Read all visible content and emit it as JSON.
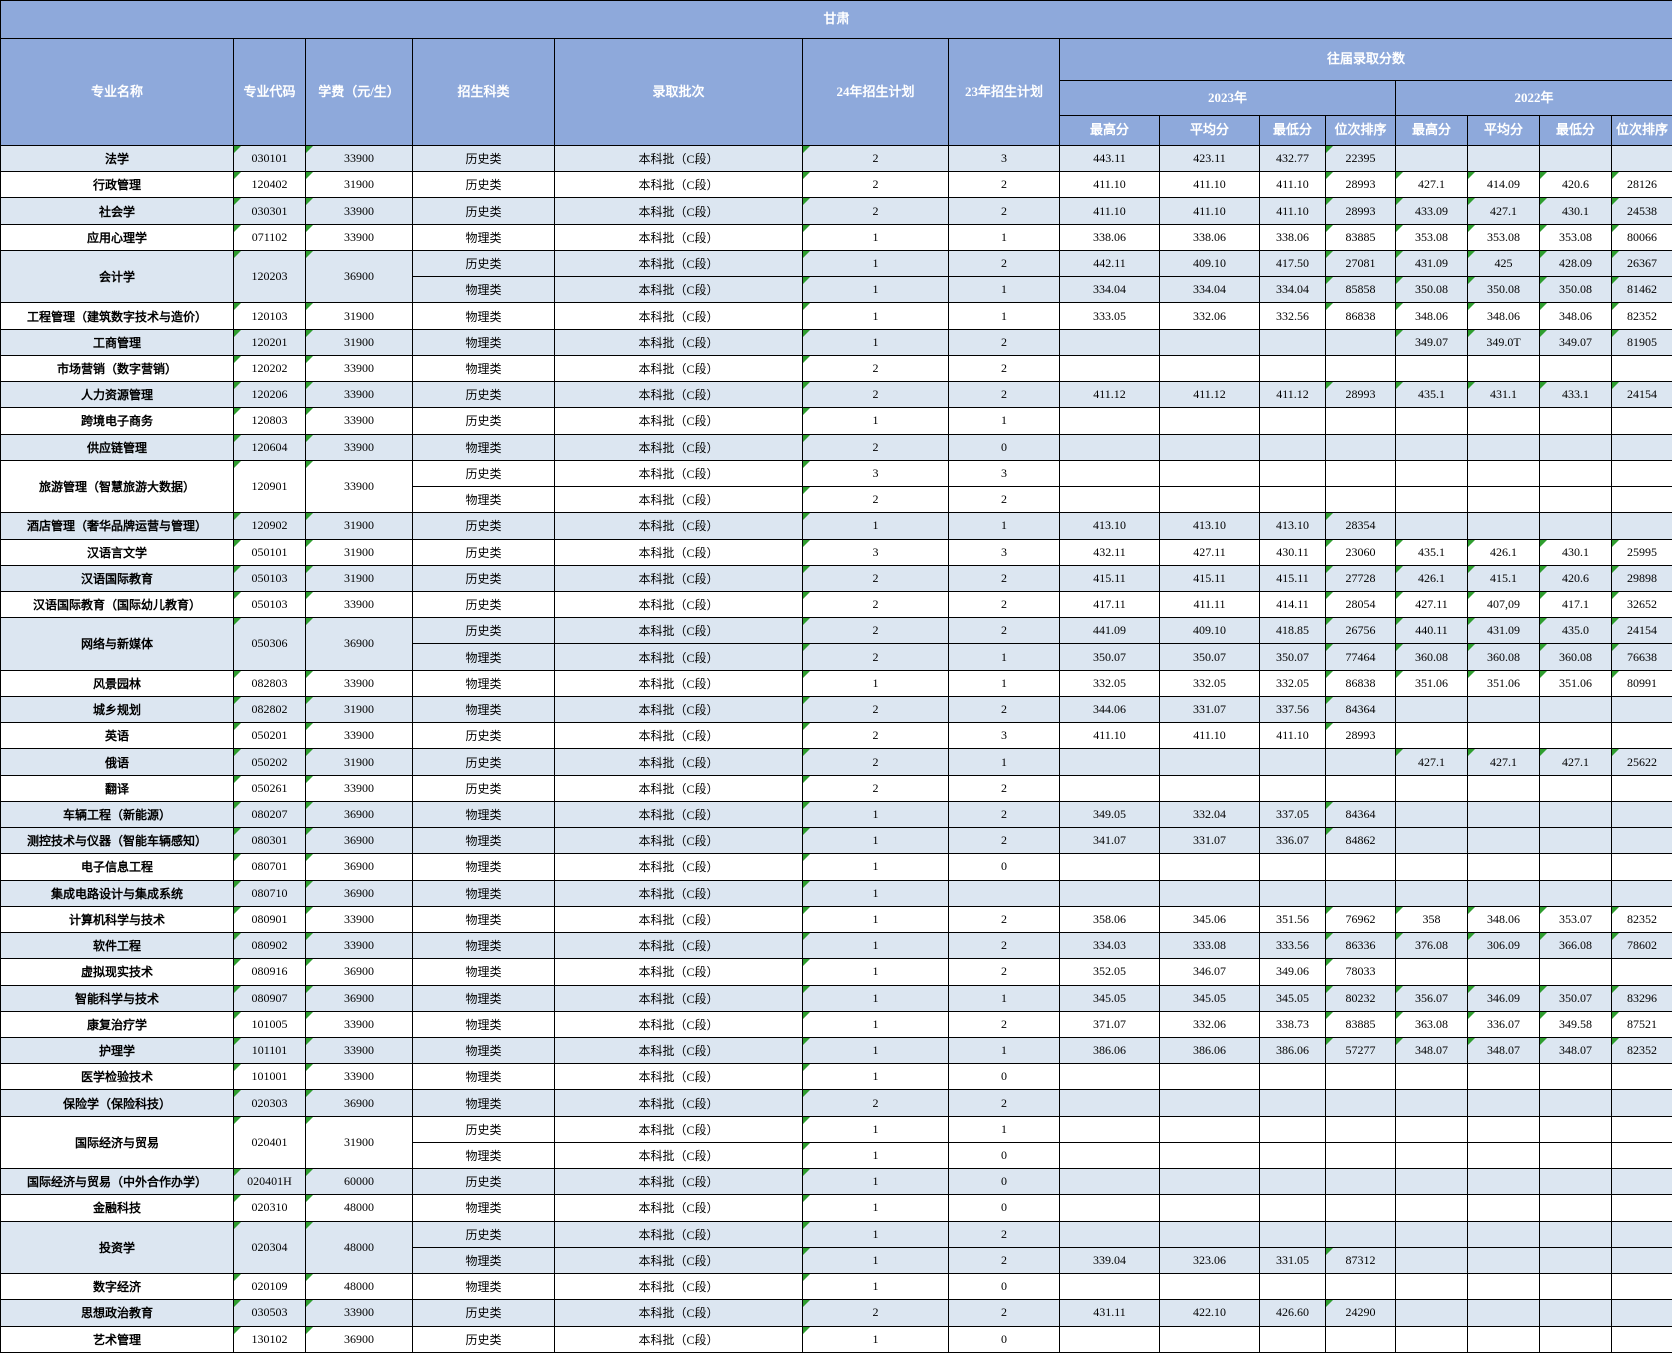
{
  "title": "甘肃",
  "colors": {
    "header_blue": "#8ea9db",
    "row_tint": "#dce6f1",
    "border": "#000000",
    "marker_green": "#2f9e2f"
  },
  "header": {
    "major_name": "专业名称",
    "major_code": "专业代码",
    "tuition": "学费（元/生）",
    "category": "招生科类",
    "batch": "录取批次",
    "plan24": "24年招生计划",
    "plan23": "23年招生计划",
    "past_scores": "往届录取分数",
    "year2023": "2023年",
    "year2022": "2022年",
    "max": "最高分",
    "avg": "平均分",
    "min": "最低分",
    "rank": "位次排序"
  },
  "rows": [
    {
      "name": "法学",
      "code": "030101",
      "tuition": "33900",
      "rowspan": 1,
      "category": "历史类",
      "batch": "本科批（C段）",
      "p24": "2",
      "p23": "3",
      "s": [
        "443.11",
        "423.11",
        "432.77",
        "22395",
        "",
        "",
        "",
        ""
      ],
      "tint": true
    },
    {
      "name": "行政管理",
      "code": "120402",
      "tuition": "31900",
      "rowspan": 1,
      "category": "历史类",
      "batch": "本科批（C段）",
      "p24": "2",
      "p23": "2",
      "s": [
        "411.10",
        "411.10",
        "411.10",
        "28993",
        "427.1",
        "414.09",
        "420.6",
        "28126"
      ],
      "tint": false
    },
    {
      "name": "社会学",
      "code": "030301",
      "tuition": "33900",
      "rowspan": 1,
      "category": "历史类",
      "batch": "本科批（C段）",
      "p24": "2",
      "p23": "2",
      "s": [
        "411.10",
        "411.10",
        "411.10",
        "28993",
        "433.09",
        "427.1",
        "430.1",
        "24538"
      ],
      "tint": true
    },
    {
      "name": "应用心理学",
      "code": "071102",
      "tuition": "33900",
      "rowspan": 1,
      "category": "物理类",
      "batch": "本科批（C段）",
      "p24": "1",
      "p23": "1",
      "s": [
        "338.06",
        "338.06",
        "338.06",
        "83885",
        "353.08",
        "353.08",
        "353.08",
        "80066"
      ],
      "tint": false
    },
    {
      "name": "会计学",
      "code": "120203",
      "tuition": "36900",
      "rowspan": 2,
      "category": "历史类",
      "batch": "本科批（C段）",
      "p24": "1",
      "p23": "2",
      "s": [
        "442.11",
        "409.10",
        "417.50",
        "27081",
        "431.09",
        "425",
        "428.09",
        "26367"
      ],
      "tint": true
    },
    {
      "merged": true,
      "category": "物理类",
      "batch": "本科批（C段）",
      "p24": "1",
      "p23": "1",
      "s": [
        "334.04",
        "334.04",
        "334.04",
        "85858",
        "350.08",
        "350.08",
        "350.08",
        "81462"
      ],
      "tint": true
    },
    {
      "name": "工程管理（建筑数字技术与造价）",
      "code": "120103",
      "tuition": "31900",
      "rowspan": 1,
      "category": "物理类",
      "batch": "本科批（C段）",
      "p24": "1",
      "p23": "1",
      "s": [
        "333.05",
        "332.06",
        "332.56",
        "86838",
        "348.06",
        "348.06",
        "348.06",
        "82352"
      ],
      "tint": false
    },
    {
      "name": "工商管理",
      "code": "120201",
      "tuition": "31900",
      "rowspan": 1,
      "category": "物理类",
      "batch": "本科批（C段）",
      "p24": "1",
      "p23": "2",
      "s": [
        "",
        "",
        "",
        "",
        "349.07",
        "349.0T",
        "349.07",
        "81905"
      ],
      "tint": true
    },
    {
      "name": "市场营销（数字营销）",
      "code": "120202",
      "tuition": "33900",
      "rowspan": 1,
      "category": "物理类",
      "batch": "本科批（C段）",
      "p24": "2",
      "p23": "2",
      "s": [
        "",
        "",
        "",
        "",
        "",
        "",
        "",
        ""
      ],
      "tint": false
    },
    {
      "name": "人力资源管理",
      "code": "120206",
      "tuition": "33900",
      "rowspan": 1,
      "category": "历史类",
      "batch": "本科批（C段）",
      "p24": "2",
      "p23": "2",
      "s": [
        "411.12",
        "411.12",
        "411.12",
        "28993",
        "435.1",
        "431.1",
        "433.1",
        "24154"
      ],
      "tint": true
    },
    {
      "name": "跨境电子商务",
      "code": "120803",
      "tuition": "33900",
      "rowspan": 1,
      "category": "历史类",
      "batch": "本科批（C段）",
      "p24": "1",
      "p23": "1",
      "s": [
        "",
        "",
        "",
        "",
        "",
        "",
        "",
        ""
      ],
      "tint": false
    },
    {
      "name": "供应链管理",
      "code": "120604",
      "tuition": "33900",
      "rowspan": 1,
      "category": "物理类",
      "batch": "本科批（C段）",
      "p24": "2",
      "p23": "0",
      "s": [
        "",
        "",
        "",
        "",
        "",
        "",
        "",
        ""
      ],
      "tint": true
    },
    {
      "name": "旅游管理（智慧旅游大数据）",
      "code": "120901",
      "tuition": "33900",
      "rowspan": 2,
      "category": "历史类",
      "batch": "本科批（C段）",
      "p24": "3",
      "p23": "3",
      "s": [
        "",
        "",
        "",
        "",
        "",
        "",
        "",
        ""
      ],
      "tint": false
    },
    {
      "merged": true,
      "category": "物理类",
      "batch": "本科批（C段）",
      "p24": "2",
      "p23": "2",
      "s": [
        "",
        "",
        "",
        "",
        "",
        "",
        "",
        ""
      ],
      "tint": false
    },
    {
      "name": "酒店管理（奢华品牌运营与管理）",
      "code": "120902",
      "tuition": "31900",
      "rowspan": 1,
      "category": "历史类",
      "batch": "本科批（C段）",
      "p24": "1",
      "p23": "1",
      "s": [
        "413.10",
        "413.10",
        "413.10",
        "28354",
        "",
        "",
        "",
        ""
      ],
      "tint": true
    },
    {
      "name": "汉语言文学",
      "code": "050101",
      "tuition": "31900",
      "rowspan": 1,
      "category": "历史类",
      "batch": "本科批（C段）",
      "p24": "3",
      "p23": "3",
      "s": [
        "432.11",
        "427.11",
        "430.11",
        "23060",
        "435.1",
        "426.1",
        "430.1",
        "25995"
      ],
      "tint": false
    },
    {
      "name": "汉语国际教育",
      "code": "050103",
      "tuition": "31900",
      "rowspan": 1,
      "category": "历史类",
      "batch": "本科批（C段）",
      "p24": "2",
      "p23": "2",
      "s": [
        "415.11",
        "415.11",
        "415.11",
        "27728",
        "426.1",
        "415.1",
        "420.6",
        "29898"
      ],
      "tint": true
    },
    {
      "name": "汉语国际教育（国际幼儿教育）",
      "code": "050103",
      "tuition": "33900",
      "rowspan": 1,
      "category": "历史类",
      "batch": "本科批（C段）",
      "p24": "2",
      "p23": "2",
      "s": [
        "417.11",
        "411.11",
        "414.11",
        "28054",
        "427.11",
        "407,09",
        "417.1",
        "32652"
      ],
      "tint": false
    },
    {
      "name": "网络与新媒体",
      "code": "050306",
      "tuition": "36900",
      "rowspan": 2,
      "category": "历史类",
      "batch": "本科批（C段）",
      "p24": "2",
      "p23": "2",
      "s": [
        "441.09",
        "409.10",
        "418.85",
        "26756",
        "440.11",
        "431.09",
        "435.0",
        "24154"
      ],
      "tint": true
    },
    {
      "merged": true,
      "category": "物理类",
      "batch": "本科批（C段）",
      "p24": "2",
      "p23": "1",
      "s": [
        "350.07",
        "350.07",
        "350.07",
        "77464",
        "360.08",
        "360.08",
        "360.08",
        "76638"
      ],
      "tint": true
    },
    {
      "name": "风景园林",
      "code": "082803",
      "tuition": "33900",
      "rowspan": 1,
      "category": "物理类",
      "batch": "本科批（C段）",
      "p24": "1",
      "p23": "1",
      "s": [
        "332.05",
        "332.05",
        "332.05",
        "86838",
        "351.06",
        "351.06",
        "351.06",
        "80991"
      ],
      "tint": false
    },
    {
      "name": "城乡规划",
      "code": "082802",
      "tuition": "31900",
      "rowspan": 1,
      "category": "物理类",
      "batch": "本科批（C段）",
      "p24": "2",
      "p23": "2",
      "s": [
        "344.06",
        "331.07",
        "337.56",
        "84364",
        "",
        "",
        "",
        ""
      ],
      "tint": true
    },
    {
      "name": "英语",
      "code": "050201",
      "tuition": "33900",
      "rowspan": 1,
      "category": "历史类",
      "batch": "本科批（C段）",
      "p24": "2",
      "p23": "3",
      "s": [
        "411.10",
        "411.10",
        "411.10",
        "28993",
        "",
        "",
        "",
        ""
      ],
      "tint": false
    },
    {
      "name": "俄语",
      "code": "050202",
      "tuition": "31900",
      "rowspan": 1,
      "category": "历史类",
      "batch": "本科批（C段）",
      "p24": "2",
      "p23": "1",
      "s": [
        "",
        "",
        "",
        "",
        "427.1",
        "427.1",
        "427.1",
        "25622"
      ],
      "tint": true
    },
    {
      "name": "翻译",
      "code": "050261",
      "tuition": "33900",
      "rowspan": 1,
      "category": "历史类",
      "batch": "本科批（C段）",
      "p24": "2",
      "p23": "2",
      "s": [
        "",
        "",
        "",
        "",
        "",
        "",
        "",
        ""
      ],
      "tint": false
    },
    {
      "name": "车辆工程（新能源）",
      "code": "080207",
      "tuition": "36900",
      "rowspan": 1,
      "category": "物理类",
      "batch": "本科批（C段）",
      "p24": "1",
      "p23": "2",
      "s": [
        "349.05",
        "332.04",
        "337.05",
        "84364",
        "",
        "",
        "",
        ""
      ],
      "tint": true
    },
    {
      "name": "测控技术与仪器（智能车辆感知）",
      "code": "080301",
      "tuition": "36900",
      "rowspan": 1,
      "category": "物理类",
      "batch": "本科批（C段）",
      "p24": "1",
      "p23": "2",
      "s": [
        "341.07",
        "331.07",
        "336.07",
        "84862",
        "",
        "",
        "",
        ""
      ],
      "tint": true
    },
    {
      "name": "电子信息工程",
      "code": "080701",
      "tuition": "36900",
      "rowspan": 1,
      "category": "物理类",
      "batch": "本科批（C段）",
      "p24": "1",
      "p23": "0",
      "s": [
        "",
        "",
        "",
        "",
        "",
        "",
        "",
        ""
      ],
      "tint": false
    },
    {
      "name": "集成电路设计与集成系统",
      "code": "080710",
      "tuition": "36900",
      "rowspan": 1,
      "category": "物理类",
      "batch": "本科批（C段）",
      "p24": "1",
      "p23": "",
      "s": [
        "",
        "",
        "",
        "",
        "",
        "",
        "",
        ""
      ],
      "tint": true
    },
    {
      "name": "计算机科学与技术",
      "code": "080901",
      "tuition": "33900",
      "rowspan": 1,
      "category": "物理类",
      "batch": "本科批（C段）",
      "p24": "1",
      "p23": "2",
      "s": [
        "358.06",
        "345.06",
        "351.56",
        "76962",
        "358",
        "348.06",
        "353.07",
        "82352"
      ],
      "tint": false
    },
    {
      "name": "软件工程",
      "code": "080902",
      "tuition": "33900",
      "rowspan": 1,
      "category": "物理类",
      "batch": "本科批（C段）",
      "p24": "1",
      "p23": "2",
      "s": [
        "334.03",
        "333.08",
        "333.56",
        "86336",
        "376.08",
        "306.09",
        "366.08",
        "78602"
      ],
      "tint": true
    },
    {
      "name": "虚拟现实技术",
      "code": "080916",
      "tuition": "36900",
      "rowspan": 1,
      "category": "物理类",
      "batch": "本科批（C段）",
      "p24": "1",
      "p23": "2",
      "s": [
        "352.05",
        "346.07",
        "349.06",
        "78033",
        "",
        "",
        "",
        ""
      ],
      "tint": false
    },
    {
      "name": "智能科学与技术",
      "code": "080907",
      "tuition": "36900",
      "rowspan": 1,
      "category": "物理类",
      "batch": "本科批（C段）",
      "p24": "1",
      "p23": "1",
      "s": [
        "345.05",
        "345.05",
        "345.05",
        "80232",
        "356.07",
        "346.09",
        "350.07",
        "83296"
      ],
      "tint": true
    },
    {
      "name": "康复治疗学",
      "code": "101005",
      "tuition": "33900",
      "rowspan": 1,
      "category": "物理类",
      "batch": "本科批（C段）",
      "p24": "1",
      "p23": "2",
      "s": [
        "371.07",
        "332.06",
        "338.73",
        "83885",
        "363.08",
        "336.07",
        "349.58",
        "87521"
      ],
      "tint": false
    },
    {
      "name": "护理学",
      "code": "101101",
      "tuition": "33900",
      "rowspan": 1,
      "category": "物理类",
      "batch": "本科批（C段）",
      "p24": "1",
      "p23": "1",
      "s": [
        "386.06",
        "386.06",
        "386.06",
        "57277",
        "348.07",
        "348.07",
        "348.07",
        "82352"
      ],
      "tint": true
    },
    {
      "name": "医学检验技术",
      "code": "101001",
      "tuition": "33900",
      "rowspan": 1,
      "category": "物理类",
      "batch": "本科批（C段）",
      "p24": "1",
      "p23": "0",
      "s": [
        "",
        "",
        "",
        "",
        "",
        "",
        "",
        ""
      ],
      "tint": false
    },
    {
      "name": "保险学（保险科技）",
      "code": "020303",
      "tuition": "36900",
      "rowspan": 1,
      "category": "物理类",
      "batch": "本科批（C段）",
      "p24": "2",
      "p23": "2",
      "s": [
        "",
        "",
        "",
        "",
        "",
        "",
        "",
        ""
      ],
      "tint": true
    },
    {
      "name": "国际经济与贸易",
      "code": "020401",
      "tuition": "31900",
      "rowspan": 2,
      "category": "历史类",
      "batch": "本科批（C段）",
      "p24": "1",
      "p23": "1",
      "s": [
        "",
        "",
        "",
        "",
        "",
        "",
        "",
        ""
      ],
      "tint": false
    },
    {
      "merged": true,
      "category": "物理类",
      "batch": "本科批（C段）",
      "p24": "1",
      "p23": "0",
      "s": [
        "",
        "",
        "",
        "",
        "",
        "",
        "",
        ""
      ],
      "tint": false
    },
    {
      "name": "国际经济与贸易（中外合作办学）",
      "code": "020401H",
      "tuition": "60000",
      "rowspan": 1,
      "category": "历史类",
      "batch": "本科批（C段）",
      "p24": "1",
      "p23": "0",
      "s": [
        "",
        "",
        "",
        "",
        "",
        "",
        "",
        ""
      ],
      "tint": true
    },
    {
      "name": "金融科技",
      "code": "020310",
      "tuition": "48000",
      "rowspan": 1,
      "category": "物理类",
      "batch": "本科批（C段）",
      "p24": "1",
      "p23": "0",
      "s": [
        "",
        "",
        "",
        "",
        "",
        "",
        "",
        ""
      ],
      "tint": false
    },
    {
      "name": "投资学",
      "code": "020304",
      "tuition": "48000",
      "rowspan": 2,
      "category": "历史类",
      "batch": "本科批（C段）",
      "p24": "1",
      "p23": "2",
      "s": [
        "",
        "",
        "",
        "",
        "",
        "",
        "",
        ""
      ],
      "tint": true
    },
    {
      "merged": true,
      "category": "物理类",
      "batch": "本科批（C段）",
      "p24": "1",
      "p23": "2",
      "s": [
        "339.04",
        "323.06",
        "331.05",
        "87312",
        "",
        "",
        "",
        ""
      ],
      "tint": true
    },
    {
      "name": "数字经济",
      "code": "020109",
      "tuition": "48000",
      "rowspan": 1,
      "category": "物理类",
      "batch": "本科批（C段）",
      "p24": "1",
      "p23": "0",
      "s": [
        "",
        "",
        "",
        "",
        "",
        "",
        "",
        ""
      ],
      "tint": false
    },
    {
      "name": "思想政治教育",
      "code": "030503",
      "tuition": "33900",
      "rowspan": 1,
      "category": "历史类",
      "batch": "本科批（C段）",
      "p24": "2",
      "p23": "2",
      "s": [
        "431.11",
        "422.10",
        "426.60",
        "24290",
        "",
        "",
        "",
        ""
      ],
      "tint": true
    },
    {
      "name": "艺术管理",
      "code": "130102",
      "tuition": "36900",
      "rowspan": 1,
      "category": "历史类",
      "batch": "本科批（C段）",
      "p24": "1",
      "p23": "0",
      "s": [
        "",
        "",
        "",
        "",
        "",
        "",
        "",
        ""
      ],
      "tint": false
    }
  ]
}
